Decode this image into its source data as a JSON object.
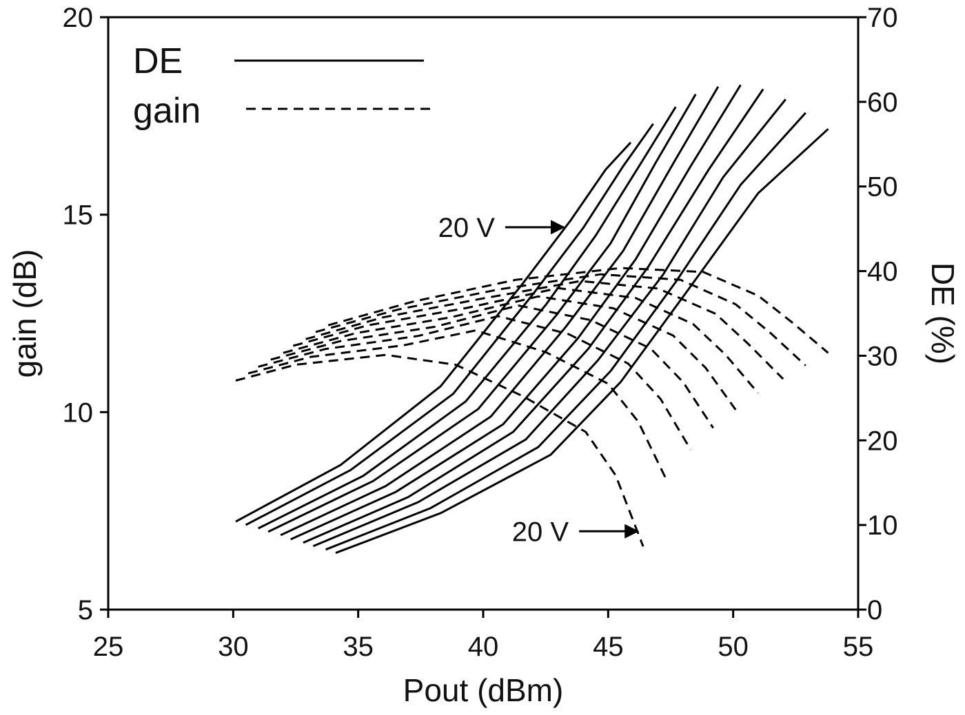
{
  "chart_data": {
    "type": "line",
    "xlabel": "Pout (dBm)",
    "ylabel": "gain (dB)",
    "y2label": "DE (%)",
    "xlim": [
      25,
      55
    ],
    "xticks": [
      25,
      30,
      35,
      40,
      45,
      50,
      55
    ],
    "ylim": [
      5,
      20
    ],
    "yticks": [
      5,
      10,
      15,
      20
    ],
    "y2lim": [
      0,
      70
    ],
    "y2ticks": [
      0,
      10,
      20,
      30,
      40,
      50,
      60,
      70
    ],
    "legend": "upper left",
    "color": "#000000",
    "annotations": [
      {
        "text": "20 V",
        "series": 0
      },
      {
        "text": "20 V",
        "series": 1
      }
    ],
    "series": [
      {
        "name": "DE",
        "axis": "y2",
        "line_style": "solid",
        "curves": [
          {
            "x": [
              30.1,
              34.3,
              38.3,
              41.6,
              43.5,
              44.9,
              45.9
            ],
            "values": [
              10.4,
              17.1,
              26.4,
              38.6,
              46.0,
              52.0,
              55.2
            ]
          },
          {
            "x": [
              30.5,
              34.7,
              38.8,
              42.0,
              44.0,
              45.6,
              46.8
            ],
            "values": [
              10.0,
              16.5,
              25.5,
              37.3,
              45.1,
              52.4,
              57.4
            ]
          },
          {
            "x": [
              31.0,
              35.2,
              39.3,
              42.5,
              44.5,
              46.3,
              47.7
            ],
            "values": [
              9.6,
              15.8,
              24.6,
              36.0,
              44.2,
              52.7,
              59.4
            ]
          },
          {
            "x": [
              31.4,
              35.6,
              39.8,
              42.9,
              45.1,
              46.9,
              48.5
            ],
            "values": [
              9.2,
              15.2,
              23.7,
              34.7,
              43.3,
              52.8,
              60.9
            ]
          },
          {
            "x": [
              31.9,
              36.1,
              40.3,
              43.3,
              45.6,
              47.6,
              49.4
            ],
            "values": [
              8.8,
              14.6,
              22.8,
              33.4,
              42.4,
              52.7,
              61.8
            ]
          },
          {
            "x": [
              32.3,
              36.5,
              40.8,
              43.8,
              46.1,
              48.3,
              50.3
            ],
            "values": [
              8.3,
              13.9,
              21.9,
              32.1,
              41.4,
              52.4,
              62.0
            ]
          },
          {
            "x": [
              32.8,
              37.0,
              41.2,
              44.2,
              46.6,
              49.0,
              51.2
            ],
            "values": [
              7.9,
              13.3,
              21.0,
              30.8,
              40.5,
              51.9,
              61.5
            ]
          },
          {
            "x": [
              33.2,
              37.4,
              41.7,
              44.6,
              47.2,
              49.6,
              52.1
            ],
            "values": [
              7.5,
              12.7,
              20.1,
              29.5,
              39.6,
              51.1,
              60.3
            ]
          },
          {
            "x": [
              33.7,
              37.9,
              42.2,
              45.1,
              47.7,
              50.3,
              52.9
            ],
            "values": [
              7.1,
              12.0,
              19.2,
              28.2,
              38.7,
              50.2,
              58.7
            ]
          },
          {
            "x": [
              34.1,
              38.3,
              42.7,
              45.5,
              48.2,
              51.0,
              53.8
            ],
            "values": [
              6.7,
              11.4,
              18.3,
              26.9,
              37.8,
              49.2,
              56.8
            ]
          }
        ]
      },
      {
        "name": "gain",
        "axis": "y",
        "line_style": "dashed",
        "curves": [
          {
            "x": [
              30.1,
              32.5,
              36.1,
              38.9,
              41.6,
              44.1,
              45.3,
              46.4
            ],
            "values": [
              10.8,
              11.2,
              11.45,
              11.2,
              10.4,
              9.5,
              8.4,
              6.6
            ]
          },
          {
            "x": [
              30.6,
              33.1,
              36.8,
              39.7,
              42.5,
              45.0,
              46.2,
              47.3
            ],
            "values": [
              10.98,
              11.4,
              11.69,
              12.07,
              11.52,
              10.72,
              9.76,
              8.33
            ]
          },
          {
            "x": [
              31.0,
              33.7,
              37.4,
              40.6,
              43.4,
              45.8,
              47.1,
              48.3
            ],
            "values": [
              11.15,
              11.6,
              11.93,
              12.43,
              11.98,
              11.23,
              10.33,
              9.05
            ]
          },
          {
            "x": [
              31.5,
              34.3,
              38.05,
              41.4,
              44.3,
              46.7,
              48.0,
              49.2
            ],
            "values": [
              11.33,
              11.8,
              12.16,
              12.7,
              12.33,
              11.61,
              10.76,
              9.6
            ]
          },
          {
            "x": [
              32.0,
              34.9,
              38.7,
              42.2,
              45.2,
              47.6,
              48.9,
              50.1
            ],
            "values": [
              11.5,
              12.0,
              12.4,
              12.93,
              12.63,
              11.94,
              11.12,
              10.06
            ]
          },
          {
            "x": [
              32.4,
              35.4,
              39.35,
              43.0,
              46.1,
              48.4,
              49.7,
              51.0
            ],
            "values": [
              11.68,
              12.2,
              12.64,
              13.14,
              12.89,
              12.23,
              11.45,
              10.48
            ]
          },
          {
            "x": [
              32.9,
              36.0,
              40.0,
              43.9,
              47.0,
              49.3,
              50.6,
              52.0
            ],
            "values": [
              11.85,
              12.4,
              12.88,
              13.32,
              13.13,
              12.49,
              11.73,
              10.84
            ]
          },
          {
            "x": [
              33.3,
              36.6,
              40.65,
              44.7,
              47.9,
              50.1,
              51.5,
              52.9
            ],
            "values": [
              12.03,
              12.6,
              13.11,
              13.49,
              13.35,
              12.73,
              12.0,
              11.18
            ]
          },
          {
            "x": [
              33.8,
              37.2,
              41.3,
              45.5,
              48.8,
              51.0,
              52.4,
              53.8
            ],
            "values": [
              12.2,
              12.8,
              13.35,
              13.65,
              13.55,
              12.95,
              12.25,
              11.5
            ]
          }
        ]
      }
    ]
  }
}
